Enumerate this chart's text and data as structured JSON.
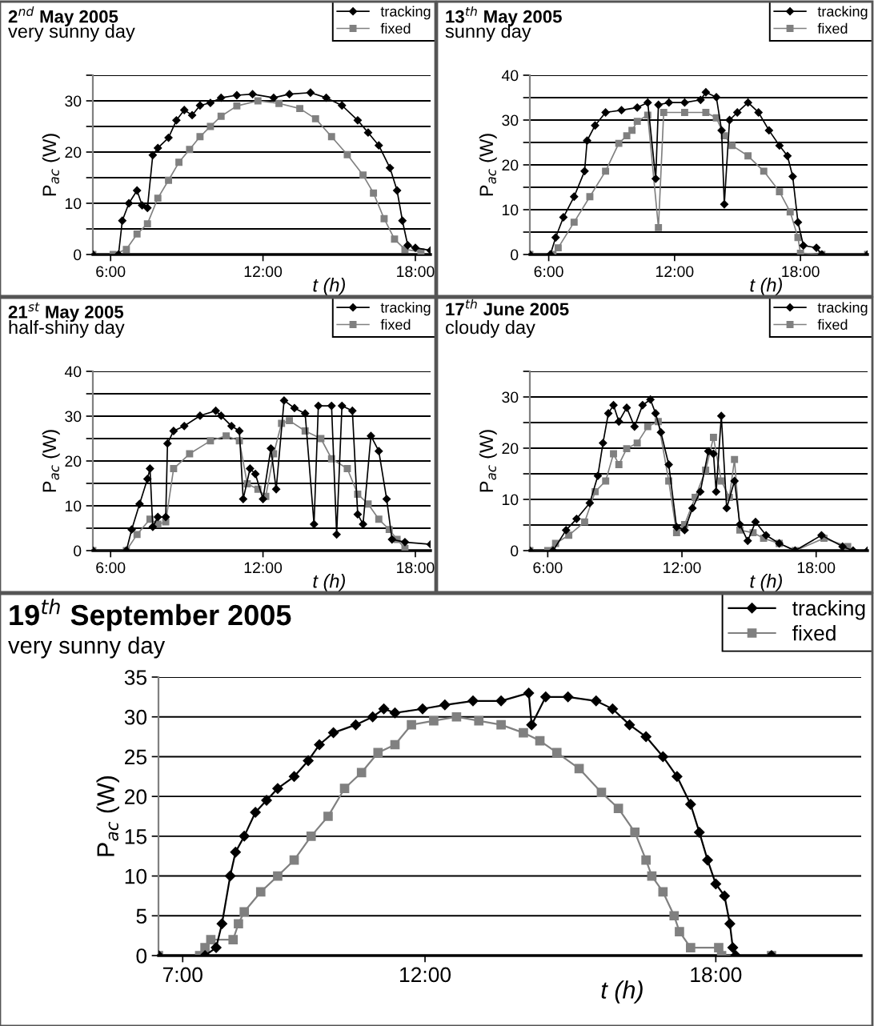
{
  "chart_data": [
    {
      "type": "line",
      "title": "2$^{nd}$ May 2005",
      "subtitle": "very sunny day",
      "xlabel": "t (h)",
      "ylabel": "P$_{ac}$ (W)",
      "legend": "top right",
      "grid": "y",
      "xlim": [
        5.3,
        18.6
      ],
      "xticks": [
        {
          "value": 6,
          "label": "6:00"
        },
        {
          "value": 12,
          "label": "12:00"
        },
        {
          "value": 18,
          "label": "18:00"
        }
      ],
      "ylim": [
        0,
        35
      ],
      "yticks": [
        0,
        {
          "value": 5,
          "label": null
        },
        10,
        {
          "value": 15,
          "label": null
        },
        20,
        {
          "value": 25,
          "label": null
        },
        30,
        {
          "value": 35,
          "label": null
        }
      ],
      "series": [
        {
          "name": "tracking",
          "color": "#000000",
          "marker": "diamond",
          "x": [
            5.3,
            6.31,
            6.46,
            6.72,
            7.04,
            7.24,
            7.45,
            7.66,
            7.86,
            8.28,
            8.59,
            8.9,
            9.21,
            9.52,
            9.93,
            10.35,
            10.97,
            11.59,
            12.42,
            13.04,
            13.87,
            14.49,
            15.11,
            15.73,
            16.14,
            16.56,
            17.0,
            17.28,
            17.49,
            17.7,
            18.0,
            18.6
          ],
          "values": [
            0,
            0,
            6.6,
            10,
            12.5,
            9.6,
            9.1,
            19.4,
            20.8,
            22.8,
            26.2,
            28.2,
            27.2,
            29.1,
            29.6,
            30.6,
            31.1,
            31.3,
            30.6,
            31.3,
            31.6,
            30.6,
            29.1,
            26.2,
            23.8,
            21.3,
            16.9,
            12.5,
            6.6,
            1.8,
            1.3,
            0.8
          ]
        },
        {
          "name": "fixed",
          "color": "#808080",
          "marker": "square",
          "x": [
            5.3,
            6.1,
            6.62,
            7.04,
            7.45,
            7.86,
            8.28,
            8.69,
            9.11,
            9.52,
            9.93,
            10.35,
            10.97,
            11.8,
            12.63,
            13.45,
            14.07,
            14.7,
            15.32,
            15.94,
            16.35,
            16.77,
            17.18,
            17.59,
            18.22
          ],
          "values": [
            0,
            0,
            1,
            4,
            6,
            11,
            14.5,
            18,
            20.5,
            23,
            25,
            27,
            29,
            30,
            29.5,
            28.5,
            26.5,
            23,
            19.5,
            15.5,
            12,
            7,
            3,
            1,
            0.5
          ]
        }
      ]
    },
    {
      "type": "line",
      "title": "13$^{th}$ May 2005",
      "subtitle": "sunny day",
      "xlabel": "t (h)",
      "ylabel": "P$_{ac}$ (W)",
      "legend": "top right",
      "grid": "y",
      "xlim": [
        5.1,
        21.2
      ],
      "xticks": [
        {
          "value": 6,
          "label": "6:00"
        },
        {
          "value": 12,
          "label": "12:00"
        },
        {
          "value": 18,
          "label": "18:00"
        }
      ],
      "ylim": [
        0,
        40
      ],
      "yticks": [
        0,
        {
          "value": 5,
          "label": null
        },
        10,
        {
          "value": 15,
          "label": null
        },
        20,
        {
          "value": 25,
          "label": null
        },
        30,
        {
          "value": 35,
          "label": null
        },
        40
      ],
      "series": [
        {
          "name": "tracking",
          "color": "#000000",
          "marker": "diamond",
          "x": [
            5.1,
            6.08,
            6.33,
            6.7,
            7.21,
            7.71,
            7.83,
            8.21,
            8.71,
            9.47,
            10.22,
            10.72,
            11.1,
            11.23,
            11.73,
            12.48,
            13.24,
            13.49,
            13.99,
            14.24,
            14.37,
            14.62,
            14.99,
            15.5,
            16.0,
            16.5,
            17.0,
            17.38,
            17.63,
            17.88,
            18.14,
            18.76,
            19.02,
            21.2
          ],
          "values": [
            0,
            0,
            3.8,
            8.3,
            12.9,
            18.6,
            25.4,
            28.8,
            31.7,
            32.2,
            32.8,
            33.9,
            16.9,
            33.4,
            33.9,
            33.9,
            34.5,
            36.2,
            35.1,
            27.7,
            11.2,
            30,
            31.7,
            33.9,
            31.7,
            27.7,
            24.3,
            22,
            17.4,
            7.2,
            2,
            1.5,
            0,
            0
          ]
        },
        {
          "name": "fixed",
          "color": "#808080",
          "marker": "square",
          "x": [
            5.1,
            6.2,
            6.45,
            7.21,
            7.96,
            8.71,
            9.34,
            9.72,
            9.97,
            10.22,
            10.72,
            11.23,
            11.48,
            12.48,
            13.49,
            13.99,
            14.37,
            14.74,
            15.5,
            16.25,
            17.0,
            17.51,
            17.88,
            18.0,
            19.02,
            21.2
          ],
          "values": [
            0,
            0,
            1.5,
            7.2,
            12.9,
            18.6,
            24.8,
            26.5,
            27.7,
            29.7,
            31.1,
            6,
            31.7,
            31.7,
            31.7,
            30.5,
            26.5,
            24.3,
            22,
            18.6,
            14,
            9.5,
            3.8,
            0.3,
            0,
            0
          ]
        }
      ]
    },
    {
      "type": "line",
      "title": "21$^{st}$ May 2005",
      "subtitle": "half-shiny day",
      "xlabel": "t (h)",
      "ylabel": "P$_{ac}$ (W)",
      "legend": "top right",
      "grid": "y",
      "xlim": [
        5.3,
        18.6
      ],
      "xticks": [
        {
          "value": 6,
          "label": "6:00"
        },
        {
          "value": 12,
          "label": "12:00"
        },
        {
          "value": 18,
          "label": "18:00"
        }
      ],
      "ylim": [
        0,
        40
      ],
      "yticks": [
        0,
        {
          "value": 5,
          "label": null
        },
        10,
        {
          "value": 15,
          "label": null
        },
        20,
        {
          "value": 25,
          "label": null
        },
        30,
        {
          "value": 35,
          "label": null
        },
        40
      ],
      "series": [
        {
          "name": "tracking",
          "color": "#000000",
          "marker": "diamond",
          "x": [
            5.3,
            6.62,
            6.83,
            7.14,
            7.45,
            7.55,
            7.66,
            7.86,
            8.17,
            8.24,
            8.48,
            8.9,
            9.52,
            10.14,
            10.35,
            10.76,
            11.07,
            11.22,
            11.49,
            11.7,
            12.0,
            12.31,
            12.52,
            12.83,
            13.24,
            13.66,
            14.01,
            14.18,
            14.7,
            14.9,
            15.11,
            15.52,
            15.73,
            15.94,
            16.25,
            16.56,
            16.87,
            17.08,
            17.59,
            18.6
          ],
          "values": [
            0,
            0,
            4.7,
            10.4,
            16,
            18.3,
            5.3,
            7.5,
            7.5,
            23.9,
            26.7,
            27.8,
            30.1,
            31.2,
            30.1,
            27.8,
            26.7,
            11.5,
            18.3,
            17.1,
            11.5,
            22.8,
            13.7,
            33.5,
            31.8,
            30.6,
            5.9,
            32.3,
            32.3,
            3.6,
            32.3,
            31.2,
            8.1,
            5.9,
            25.6,
            22.2,
            11.5,
            2.5,
            1.9,
            1.4
          ]
        },
        {
          "name": "fixed",
          "color": "#808080",
          "marker": "square",
          "x": [
            5.3,
            6.62,
            7.04,
            7.55,
            7.86,
            8.17,
            8.48,
            9.11,
            9.93,
            10.55,
            11.07,
            11.38,
            11.8,
            12.11,
            12.42,
            12.73,
            13.04,
            13.66,
            14.28,
            14.7,
            15.32,
            15.73,
            16.14,
            16.56,
            16.97,
            17.28,
            17.59
          ],
          "values": [
            0,
            0,
            3.6,
            7,
            5.9,
            6.4,
            18.3,
            21.6,
            24.5,
            25.6,
            24.5,
            14.9,
            13.7,
            12.1,
            21.6,
            28.4,
            29,
            26.7,
            25,
            20.5,
            18.3,
            12.6,
            10.4,
            7,
            4.7,
            2.5,
            0.5
          ]
        }
      ]
    },
    {
      "type": "line",
      "title": "17$^{th}$ June 2005",
      "subtitle": "cloudy day",
      "xlabel": "t (h)",
      "ylabel": "P$_{ac}$ (W)",
      "legend": "top right",
      "grid": "y",
      "xlim": [
        5.2,
        20.3
      ],
      "xticks": [
        {
          "value": 6,
          "label": "6:00"
        },
        {
          "value": 12,
          "label": "12:00"
        },
        {
          "value": 18,
          "label": "18:00"
        }
      ],
      "ylim": [
        0,
        35
      ],
      "yticks": [
        0,
        {
          "value": 5,
          "label": null
        },
        10,
        {
          "value": 15,
          "label": null
        },
        20,
        {
          "value": 25,
          "label": null
        },
        30,
        {
          "value": 35,
          "label": null
        }
      ],
      "series": [
        {
          "name": "tracking",
          "color": "#000000",
          "marker": "diamond",
          "x": [
            5.2,
            6.24,
            6.82,
            7.29,
            7.88,
            8.24,
            8.47,
            8.71,
            8.94,
            9.18,
            9.53,
            9.88,
            10.24,
            10.59,
            10.82,
            11.06,
            11.41,
            11.76,
            12.12,
            12.47,
            12.82,
            13.18,
            13.41,
            13.53,
            13.76,
            14.0,
            14.35,
            14.59,
            14.94,
            15.29,
            15.76,
            16.35,
            17.06,
            18.24,
            19.18,
            19.65,
            20.3
          ],
          "values": [
            0,
            0,
            4,
            6.2,
            9.3,
            14.6,
            21,
            26.8,
            28.4,
            25.2,
            27.9,
            24.2,
            28.4,
            29.5,
            26.8,
            23.1,
            16.8,
            4.6,
            4,
            8.3,
            11.5,
            19.4,
            18.9,
            11.5,
            26.3,
            8.3,
            13.6,
            5.1,
            1.9,
            5.6,
            3,
            1.4,
            0,
            3,
            0.8,
            0,
            0
          ]
        },
        {
          "name": "fixed",
          "color": "#808080",
          "marker": "square",
          "x": [
            5.2,
            6.0,
            6.35,
            6.94,
            7.65,
            8.12,
            8.59,
            8.94,
            9.18,
            9.53,
            10.0,
            10.47,
            10.94,
            11.41,
            11.76,
            12.12,
            12.59,
            13.06,
            13.41,
            13.76,
            14.12,
            14.35,
            14.59,
            15.18,
            15.65,
            16.35,
            17.06,
            18.35,
            19.41
          ],
          "values": [
            0,
            0,
            1.4,
            3,
            5.6,
            11.5,
            13.6,
            18.9,
            16.8,
            19.9,
            21,
            24.2,
            25.2,
            13.6,
            3.5,
            5.1,
            10.4,
            15.7,
            22.1,
            13.6,
            10.4,
            17.8,
            4,
            3.5,
            2.4,
            1.4,
            0,
            2.4,
            0.8
          ]
        }
      ]
    },
    {
      "type": "line",
      "title": "19$^{th}$ September 2005",
      "subtitle": "very sunny day",
      "xlabel": "t (h)",
      "ylabel": "P$_{ac}$ (W)",
      "legend": "top right",
      "grid": "y",
      "xlim": [
        6.5,
        21.0
      ],
      "xticks": [
        {
          "value": 7,
          "label": "7:00"
        },
        {
          "value": 12,
          "label": "12:00"
        },
        {
          "value": 18,
          "label": "18:00"
        }
      ],
      "ylim": [
        0,
        35
      ],
      "yticks": [
        0,
        5,
        10,
        15,
        20,
        25,
        30,
        35
      ],
      "series": [
        {
          "name": "tracking",
          "color": "#000000",
          "marker": "diamond",
          "x": [
            6.5,
            7.46,
            7.69,
            7.81,
            7.98,
            8.09,
            8.27,
            8.5,
            8.73,
            8.96,
            9.3,
            9.59,
            9.82,
            10.11,
            10.57,
            10.92,
            11.15,
            11.38,
            11.95,
            12.41,
            12.99,
            13.57,
            14.14,
            14.2,
            14.49,
            14.95,
            15.53,
            15.87,
            16.22,
            16.56,
            16.91,
            17.2,
            17.48,
            17.66,
            17.83,
            18.0,
            18.18,
            18.29,
            18.35,
            18.41,
            19.15
          ],
          "values": [
            0,
            0,
            1,
            4,
            10,
            13,
            15,
            18,
            19.5,
            21,
            22.5,
            24.5,
            26.5,
            28,
            29,
            30,
            31,
            30.5,
            31,
            31.5,
            32,
            32,
            33,
            29,
            32.5,
            32.5,
            32,
            31,
            29,
            27.5,
            25,
            22.5,
            19,
            15.5,
            12,
            9,
            7.5,
            4,
            1,
            0,
            0
          ]
        },
        {
          "name": "fixed",
          "color": "#808080",
          "marker": "square",
          "x": [
            6.5,
            7.35,
            7.46,
            7.58,
            8.04,
            8.15,
            8.27,
            8.61,
            8.96,
            9.3,
            9.65,
            10.0,
            10.34,
            10.69,
            11.03,
            11.38,
            11.72,
            12.18,
            12.65,
            13.11,
            13.57,
            14.03,
            14.37,
            14.72,
            15.18,
            15.64,
            15.99,
            16.33,
            16.56,
            16.68,
            16.91,
            17.14,
            17.25,
            17.48,
            18.06,
            18.12,
            19.15
          ],
          "values": [
            0,
            0,
            1,
            2,
            2,
            4,
            5.5,
            8,
            10,
            12,
            15,
            17.5,
            21,
            23,
            25.5,
            26.5,
            29,
            29.5,
            30,
            29.5,
            29,
            28,
            27,
            25.5,
            23.5,
            20.5,
            18.5,
            15.5,
            12,
            10,
            8,
            5,
            3,
            1,
            1,
            0,
            0
          ]
        }
      ]
    }
  ]
}
